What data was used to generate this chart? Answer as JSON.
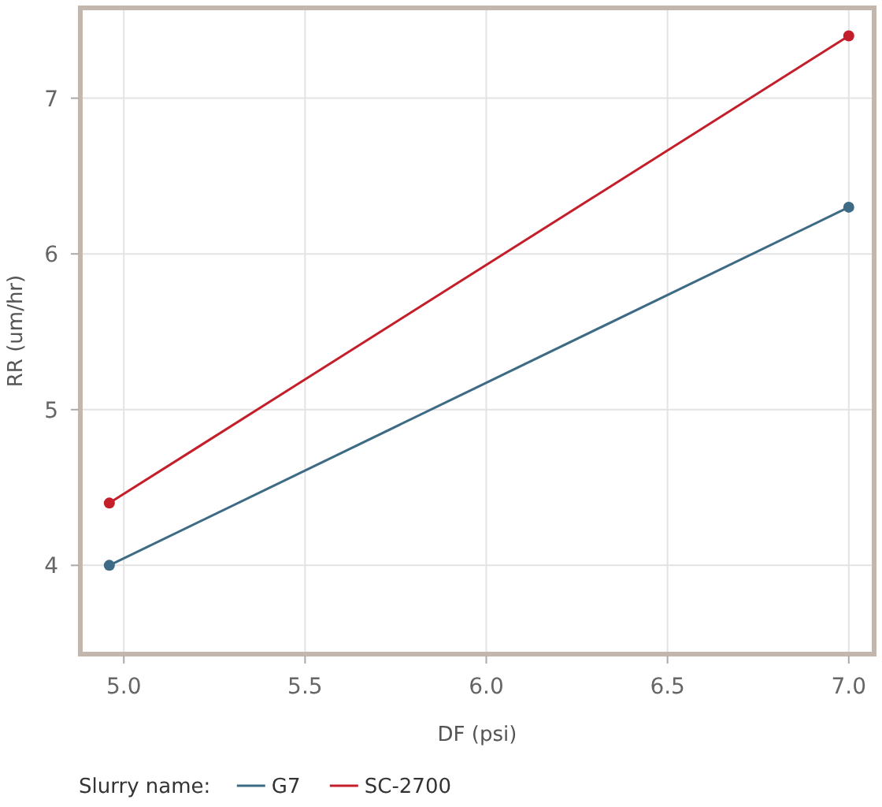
{
  "chart_data": {
    "type": "line",
    "xlabel": "DF (psi)",
    "ylabel": "RR (um/hr)",
    "legend_title": "Slurry name:",
    "legend": "bottom left",
    "grid": true,
    "marker": "circle",
    "line_style": "solid",
    "xlim": [
      4.88,
      7.07
    ],
    "xticks": [
      {
        "value": 5,
        "label": "5.0"
      },
      {
        "value": 5.5,
        "label": "5.5"
      },
      {
        "value": 6,
        "label": "6.0"
      },
      {
        "value": 6.5,
        "label": "6.5"
      },
      {
        "value": 7,
        "label": "7.0"
      }
    ],
    "ylim": [
      3.43,
      7.58
    ],
    "yticks": [
      4,
      5,
      6,
      7
    ],
    "x": [
      4.96,
      7.0
    ],
    "series": [
      {
        "name": "G7",
        "color": "#3d6a84",
        "values": [
          4.0,
          6.3
        ]
      },
      {
        "name": "SC-2700",
        "color": "#c41e2a",
        "values": [
          4.4,
          7.4
        ]
      }
    ]
  }
}
